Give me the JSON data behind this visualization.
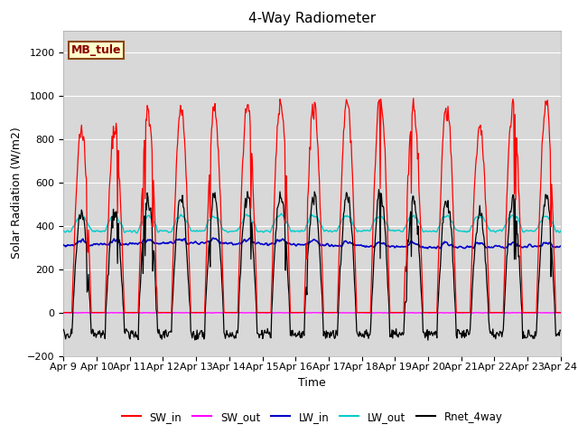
{
  "title": "4-Way Radiometer",
  "xlabel": "Time",
  "ylabel": "Solar Radiation (W/m2)",
  "ylim": [
    -200,
    1300
  ],
  "yticks": [
    -200,
    0,
    200,
    400,
    600,
    800,
    1000,
    1200
  ],
  "xtick_labels": [
    "Apr 9",
    "Apr 10",
    "Apr 11",
    "Apr 12",
    "Apr 13",
    "Apr 14",
    "Apr 15",
    "Apr 16",
    "Apr 17",
    "Apr 18",
    "Apr 19",
    "Apr 20",
    "Apr 21",
    "Apr 22",
    "Apr 23",
    "Apr 24"
  ],
  "label_text": "MB_tule",
  "colors": {
    "SW_in": "#ff0000",
    "SW_out": "#ff00ff",
    "LW_in": "#0000cc",
    "LW_out": "#00cccc",
    "Rnet_4way": "#000000"
  },
  "bg_color": "#d8d8d8",
  "title_fontsize": 11,
  "axis_fontsize": 8,
  "label_fontsize": 9
}
